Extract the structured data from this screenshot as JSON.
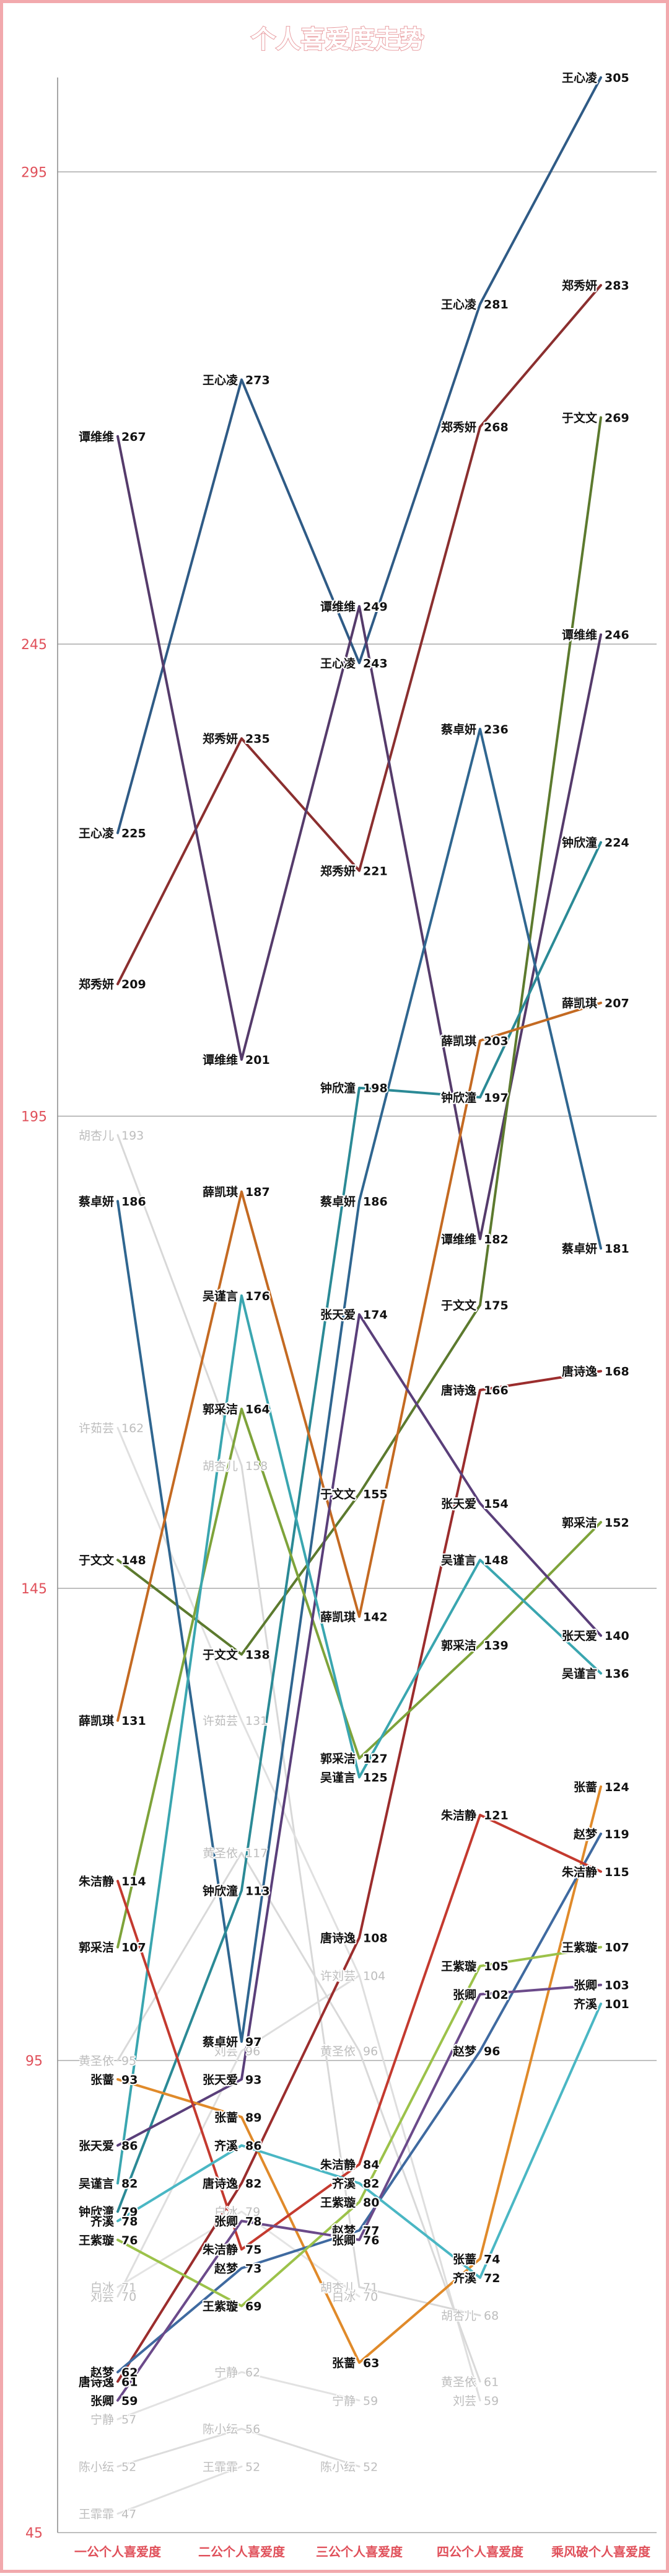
{
  "chart_data": {
    "type": "line",
    "title": "个人喜爱度走势",
    "categories": [
      "一公个人喜爱度",
      "二公个人喜爱度",
      "三公个人喜爱度",
      "四公个人喜爱度",
      "乘风破个人喜爱度"
    ],
    "ylim": [
      45,
      305
    ],
    "yticks": [
      45,
      95,
      145,
      195,
      245,
      295
    ],
    "grid": true,
    "series": [
      {
        "name": "王心凌",
        "color": "#2f5b86",
        "values": [
          225,
          273,
          243,
          281,
          305
        ]
      },
      {
        "name": "郑秀妍",
        "color": "#8b2f2f",
        "values": [
          209,
          235,
          221,
          268,
          283
        ]
      },
      {
        "name": "谭维维",
        "color": "#553b6b",
        "values": [
          267,
          201,
          249,
          182,
          246
        ]
      },
      {
        "name": "于文文",
        "color": "#5c7a2e",
        "values": [
          148,
          138,
          155,
          175,
          269
        ]
      },
      {
        "name": "蔡卓妍",
        "color": "#2f6690",
        "values": [
          186,
          97,
          186,
          236,
          181
        ]
      },
      {
        "name": "钟欣潼",
        "color": "#2b8a96",
        "values": [
          79,
          113,
          198,
          197,
          224
        ]
      },
      {
        "name": "薛凯琪",
        "color": "#c46a22",
        "values": [
          131,
          187,
          142,
          203,
          207
        ]
      },
      {
        "name": "唐诗逸",
        "color": "#9b2d2d",
        "values": [
          61,
          82,
          108,
          166,
          168
        ]
      },
      {
        "name": "郭采洁",
        "color": "#7ea33a",
        "values": [
          107,
          164,
          127,
          139,
          152
        ]
      },
      {
        "name": "张天爱",
        "color": "#5a3f7a",
        "values": [
          86,
          93,
          174,
          154,
          140
        ]
      },
      {
        "name": "吴谨言",
        "color": "#3aa6b0",
        "values": [
          82,
          176,
          125,
          148,
          136
        ]
      },
      {
        "name": "张蔷",
        "color": "#e08a2a",
        "values": [
          93,
          89,
          63,
          74,
          124
        ]
      },
      {
        "name": "赵梦",
        "color": "#3f6aa0",
        "values": [
          62,
          73,
          77,
          96,
          119
        ]
      },
      {
        "name": "朱洁静",
        "color": "#c43a2f",
        "values": [
          114,
          75,
          84,
          121,
          115
        ]
      },
      {
        "name": "王紫璇",
        "color": "#9cc24a",
        "values": [
          76,
          69,
          80,
          105,
          107
        ]
      },
      {
        "name": "张卿",
        "color": "#6b4a8a",
        "values": [
          59,
          78,
          76,
          102,
          103
        ]
      },
      {
        "name": "齐溪",
        "color": "#4ab7c4",
        "values": [
          78,
          86,
          82,
          72,
          101
        ]
      },
      {
        "name": "胡杏儿",
        "color": "#d8d8d8",
        "faint": true,
        "values": [
          193,
          158,
          71,
          68,
          null
        ]
      },
      {
        "name": "许茹芸",
        "color": "#e0e0e0",
        "faint": true,
        "values": [
          162,
          131,
          104,
          null,
          null
        ]
      },
      {
        "name": "刘芸",
        "color": "#dedede",
        "faint": true,
        "values": [
          70,
          96,
          104,
          59,
          null
        ]
      },
      {
        "name": "黄圣依",
        "color": "#d9d9d9",
        "faint": true,
        "values": [
          95,
          117,
          96,
          61,
          null
        ]
      },
      {
        "name": "宁静",
        "color": "#e2e2e2",
        "faint": true,
        "values": [
          57,
          62,
          59,
          null,
          null
        ]
      },
      {
        "name": "陈小纭",
        "color": "#dcdcdc",
        "faint": true,
        "values": [
          52,
          56,
          52,
          null,
          null
        ]
      },
      {
        "name": "白冰",
        "color": "#e4e4e4",
        "faint": true,
        "values": [
          71,
          79,
          70,
          null,
          null
        ]
      },
      {
        "name": "王霏霏",
        "color": "#e0e0e0",
        "faint": true,
        "values": [
          47,
          52,
          null,
          null,
          null
        ]
      }
    ]
  }
}
